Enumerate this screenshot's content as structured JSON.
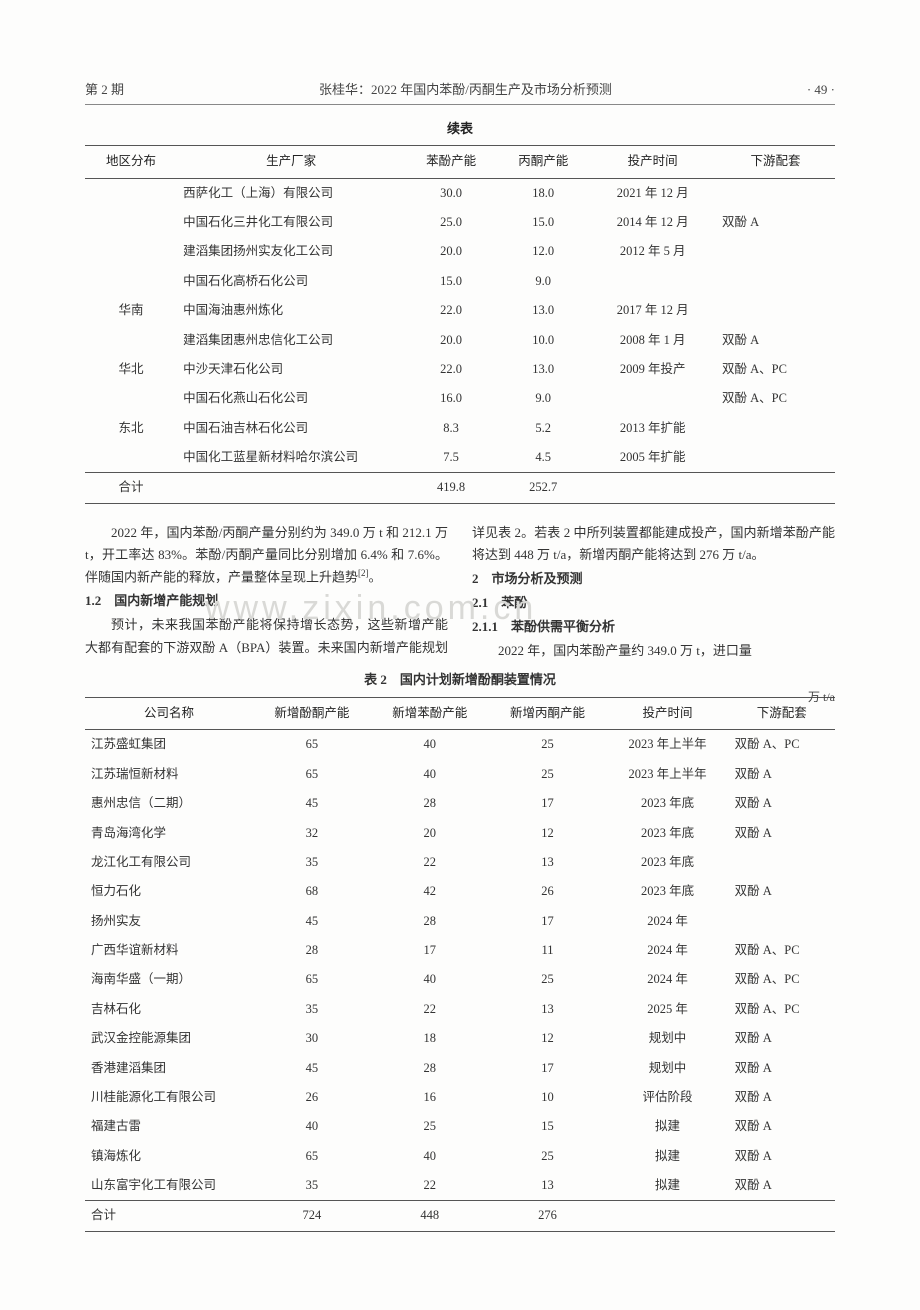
{
  "header": {
    "issue": "第 2 期",
    "title": "张桂华：2022 年国内苯酚/丙酮生产及市场分析预测",
    "page": "· 49 ·"
  },
  "watermark": "www.zixin.com.cn",
  "table1": {
    "caption": "续表",
    "columns": [
      "地区分布",
      "生产厂家",
      "苯酚产能",
      "丙酮产能",
      "投产时间",
      "下游配套"
    ],
    "rows": [
      [
        "",
        "西萨化工（上海）有限公司",
        "30.0",
        "18.0",
        "2021 年 12 月",
        ""
      ],
      [
        "",
        "中国石化三井化工有限公司",
        "25.0",
        "15.0",
        "2014 年 12 月",
        "双酚 A"
      ],
      [
        "",
        "建滔集团扬州实友化工公司",
        "20.0",
        "12.0",
        "2012 年 5 月",
        ""
      ],
      [
        "",
        "中国石化高桥石化公司",
        "15.0",
        "9.0",
        "",
        ""
      ],
      [
        "华南",
        "中国海油惠州炼化",
        "22.0",
        "13.0",
        "2017 年 12 月",
        ""
      ],
      [
        "",
        "建滔集团惠州忠信化工公司",
        "20.0",
        "10.0",
        "2008 年 1 月",
        "双酚 A"
      ],
      [
        "华北",
        "中沙天津石化公司",
        "22.0",
        "13.0",
        "2009 年投产",
        "双酚 A、PC"
      ],
      [
        "",
        "中国石化燕山石化公司",
        "16.0",
        "9.0",
        "",
        "双酚 A、PC"
      ],
      [
        "东北",
        "中国石油吉林石化公司",
        "8.3",
        "5.2",
        "2013 年扩能",
        ""
      ],
      [
        "",
        "中国化工蓝星新材料哈尔滨公司",
        "7.5",
        "4.5",
        "2005 年扩能",
        ""
      ]
    ],
    "total": [
      "合计",
      "",
      "419.8",
      "252.7",
      "",
      ""
    ]
  },
  "body": {
    "p1": "2022 年，国内苯酚/丙酮产量分别约为 349.0 万 t 和 212.1 万 t，开工率达 83%。苯酚/丙酮产量同比分别增加 6.4% 和 7.6%。伴随国内新产能的释放，产量整体呈现上升趋势",
    "p1_ref": "[2]",
    "p1_end": "。",
    "h12": "1.2　国内新增产能规划",
    "p2": "预计，未来我国苯酚产能将保持增长态势，这些新增产能大都有配套的下游双酚 A（BPA）装置。未来国内新增产能规划详见表 2。若表 2 中所列装置都能建成投产，国内新增苯酚产能将达到 448 万 t/a，新增丙酮产能将达到 276 万 t/a。",
    "h2": "2　市场分析及预测",
    "h21": "2.1　苯酚",
    "h211": "2.1.1　苯酚供需平衡分析",
    "p3": "2022 年，国内苯酚产量约 349.0 万 t，进口量"
  },
  "table2": {
    "caption": "表 2　国内计划新增酚酮装置情况",
    "unit": "万 t/a",
    "columns": [
      "公司名称",
      "新增酚酮产能",
      "新增苯酚产能",
      "新增丙酮产能",
      "投产时间",
      "下游配套"
    ],
    "rows": [
      [
        "江苏盛虹集团",
        "65",
        "40",
        "25",
        "2023 年上半年",
        "双酚 A、PC"
      ],
      [
        "江苏瑞恒新材料",
        "65",
        "40",
        "25",
        "2023 年上半年",
        "双酚 A"
      ],
      [
        "惠州忠信（二期）",
        "45",
        "28",
        "17",
        "2023 年底",
        "双酚 A"
      ],
      [
        "青岛海湾化学",
        "32",
        "20",
        "12",
        "2023 年底",
        "双酚 A"
      ],
      [
        "龙江化工有限公司",
        "35",
        "22",
        "13",
        "2023 年底",
        ""
      ],
      [
        "恒力石化",
        "68",
        "42",
        "26",
        "2023 年底",
        "双酚 A"
      ],
      [
        "扬州实友",
        "45",
        "28",
        "17",
        "2024 年",
        ""
      ],
      [
        "广西华谊新材料",
        "28",
        "17",
        "11",
        "2024 年",
        "双酚 A、PC"
      ],
      [
        "海南华盛（一期）",
        "65",
        "40",
        "25",
        "2024 年",
        "双酚 A、PC"
      ],
      [
        "吉林石化",
        "35",
        "22",
        "13",
        "2025 年",
        "双酚 A、PC"
      ],
      [
        "武汉金控能源集团",
        "30",
        "18",
        "12",
        "规划中",
        "双酚 A"
      ],
      [
        "香港建滔集团",
        "45",
        "28",
        "17",
        "规划中",
        "双酚 A"
      ],
      [
        "川桂能源化工有限公司",
        "26",
        "16",
        "10",
        "评估阶段",
        "双酚 A"
      ],
      [
        "福建古雷",
        "40",
        "25",
        "15",
        "拟建",
        "双酚 A"
      ],
      [
        "镇海炼化",
        "65",
        "40",
        "25",
        "拟建",
        "双酚 A"
      ],
      [
        "山东富宇化工有限公司",
        "35",
        "22",
        "13",
        "拟建",
        "双酚 A"
      ]
    ],
    "total": [
      "合计",
      "724",
      "448",
      "276",
      "",
      ""
    ]
  }
}
